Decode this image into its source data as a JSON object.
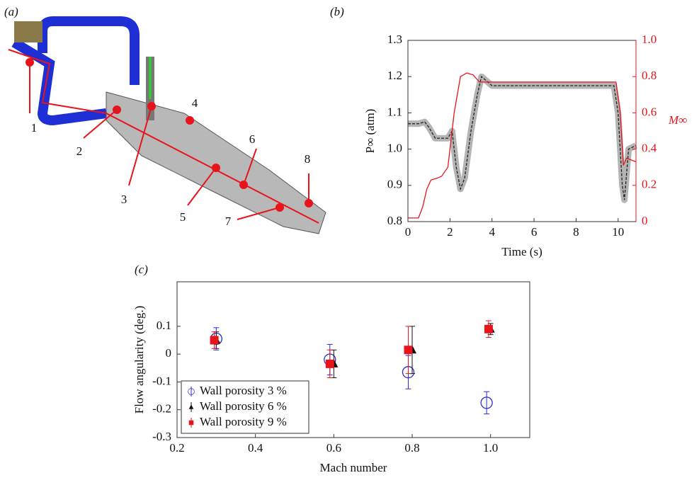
{
  "diagram": {
    "label": "(a)",
    "callouts": [
      "1",
      "2",
      "3",
      "4",
      "5",
      "6",
      "7",
      "8"
    ]
  },
  "chart_data": [
    {
      "type": "line",
      "panel_label": "(b)",
      "xlabel": "Time (s)",
      "ylabel": "P∞ (atm)",
      "y2label": "M∞",
      "y2color": "#e8141b",
      "xlim": [
        0,
        10.85
      ],
      "xticks": [
        0,
        2,
        4,
        6,
        8,
        10
      ],
      "ylim": [
        0.8,
        1.3
      ],
      "yticks": [
        0.8,
        0.9,
        {
          "value": 1.0,
          "label": "1.0"
        },
        1.1,
        1.2,
        1.3
      ],
      "y2lim": [
        0,
        1.0
      ],
      "y2ticks": [
        0,
        0.2,
        0.4,
        0.6,
        0.8,
        {
          "value": 1.0,
          "label": "1.0"
        }
      ],
      "series": [
        {
          "color": "#222222",
          "band_color": "#b4b4b4",
          "dashed": true,
          "x": [
            0,
            0.5,
            0.8,
            1.0,
            1.3,
            1.6,
            1.9,
            2.1,
            2.3,
            2.5,
            2.7,
            3.0,
            3.3,
            3.5,
            3.7,
            4.0,
            5,
            6,
            7,
            8,
            9,
            9.8,
            10.0,
            10.2,
            10.3,
            10.5,
            10.85
          ],
          "values": [
            1.07,
            1.07,
            1.075,
            1.06,
            1.03,
            1.03,
            1.03,
            1.05,
            0.95,
            0.89,
            0.92,
            1.05,
            1.15,
            1.2,
            1.19,
            1.175,
            1.175,
            1.175,
            1.175,
            1.175,
            1.175,
            1.175,
            1.1,
            0.9,
            0.86,
            1.0,
            1.01
          ]
        },
        {
          "color": "#e8141b",
          "axis": "y2",
          "x": [
            0,
            0.5,
            0.7,
            0.9,
            1.1,
            1.4,
            1.6,
            1.9,
            2.2,
            2.5,
            2.8,
            3.1,
            3.4,
            4,
            6,
            8,
            9.9,
            10.1,
            10.25,
            10.4,
            10.85
          ],
          "values": [
            0.02,
            0.02,
            0.08,
            0.18,
            0.23,
            0.24,
            0.25,
            0.3,
            0.6,
            0.8,
            0.82,
            0.81,
            0.77,
            0.77,
            0.77,
            0.77,
            0.77,
            0.6,
            0.31,
            0.35,
            0.33
          ]
        }
      ]
    },
    {
      "type": "scatter",
      "panel_label": "(c)",
      "xlabel": "Mach number",
      "ylabel": "Flow angularity (deg.)",
      "legend": "lower left",
      "xlim": [
        0.2,
        1.1
      ],
      "xticks": [
        0.2,
        0.4,
        0.6,
        0.8,
        {
          "value": 1.0,
          "label": "1.0"
        }
      ],
      "ylim": [
        -0.3,
        0.26
      ],
      "yticks": [
        -0.3,
        -0.2,
        -0.1,
        0,
        0.1
      ],
      "series": [
        {
          "name": "Wall porosity 3 %",
          "color": "#2a2ad0",
          "marker": "circle-open",
          "x": [
            0.3,
            0.59,
            0.79,
            0.99
          ],
          "values": [
            0.055,
            -0.02,
            -0.065,
            -0.175
          ],
          "errors": [
            0.04,
            0.055,
            0.06,
            0.04
          ]
        },
        {
          "name": "Wall porosity 6 %",
          "color": "#111111",
          "marker": "triangle",
          "x": [
            0.3,
            0.6,
            0.8,
            1.0
          ],
          "values": [
            0.05,
            -0.035,
            0.015,
            0.09
          ],
          "errors": [
            0.03,
            0.05,
            0.085,
            0.02
          ]
        },
        {
          "name": "Wall porosity 9 %",
          "color": "#e8141b",
          "marker": "square",
          "x": [
            0.295,
            0.59,
            0.79,
            0.995
          ],
          "values": [
            0.05,
            -0.035,
            0.015,
            0.09
          ],
          "errors": [
            0.03,
            0.05,
            0.085,
            0.03
          ]
        }
      ]
    }
  ]
}
